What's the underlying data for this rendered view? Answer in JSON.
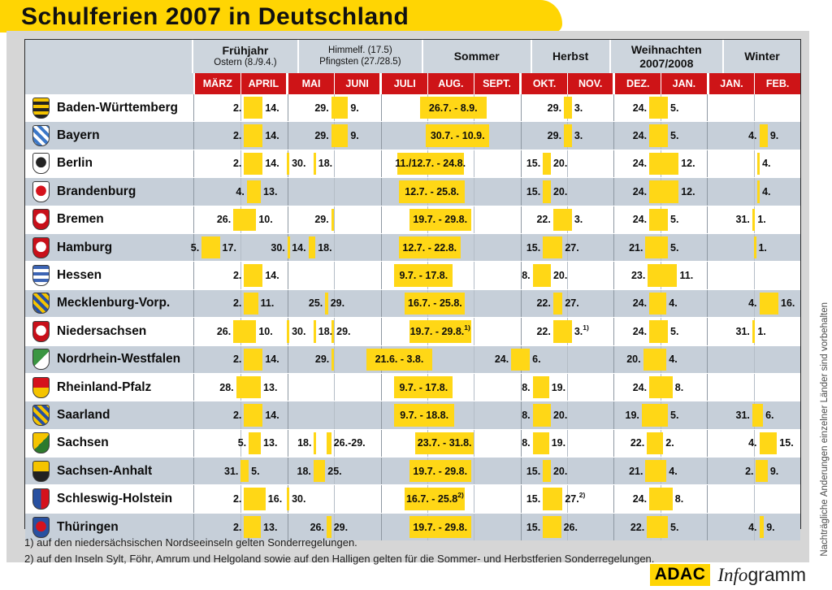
{
  "title": "Schulferien 2007 in Deutschland",
  "colors": {
    "yellow": "#ffd503",
    "bar_yellow": "#ffd716",
    "red": "#ce1417",
    "header_bg": "#cdd5dd",
    "row_alt": "#c6cfd9",
    "panel_gray": "#d6d6d6"
  },
  "header": {
    "groups": [
      {
        "label": "Frühjahr",
        "sub": "Ostern (8./9.4.)",
        "cols": 2,
        "plain": false,
        "sub_strong": false
      },
      {
        "label": "Himmelf. (17.5)",
        "sub": "Pfingsten (27./28.5)",
        "cols": 2,
        "plain": true,
        "sub_strong": false
      },
      {
        "label": "Sommer",
        "sub": "",
        "cols": 3,
        "plain": false,
        "sub_strong": false
      },
      {
        "label": "Herbst",
        "sub": "",
        "cols": 2,
        "plain": false,
        "sub_strong": false
      },
      {
        "label": "Weihnachten",
        "sub": "2007/2008",
        "cols": 2,
        "plain": false,
        "sub_strong": true
      },
      {
        "label": "Winter",
        "sub": "",
        "cols": 2,
        "plain": false,
        "sub_strong": false
      }
    ],
    "months": [
      "MÄRZ",
      "APRIL",
      "MAI",
      "JUNI",
      "JULI",
      "AUG.",
      "SEPT.",
      "OKT.",
      "NOV.",
      "DEZ.",
      "JAN.",
      "JAN.",
      "FEB."
    ],
    "group_start_indices": [
      2,
      4,
      7,
      9,
      11
    ]
  },
  "rows": [
    {
      "name": "Baden-Württemberg",
      "shield": {
        "pattern": "stripes",
        "c1": "#f5c400",
        "c2": "#222222"
      },
      "spans": [
        {
          "s": 1.07,
          "e": 1.47,
          "ll": "2.",
          "lr": "14."
        },
        {
          "s": 2.94,
          "e": 3.3,
          "ll": "29.",
          "lr": "9."
        },
        {
          "s": 4.84,
          "e": 6.27,
          "li": "26.7. - 8.9."
        },
        {
          "s": 7.93,
          "e": 8.1,
          "ll": "29.",
          "lr": "3."
        },
        {
          "s": 9.76,
          "e": 10.16,
          "ll": "24.",
          "lr": "5."
        }
      ]
    },
    {
      "name": "Bayern",
      "shield": {
        "pattern": "checker",
        "c1": "#ffffff",
        "c2": "#3c78c8"
      },
      "spans": [
        {
          "s": 1.07,
          "e": 1.47,
          "ll": "2.",
          "lr": "14."
        },
        {
          "s": 2.94,
          "e": 3.3,
          "ll": "29.",
          "lr": "9."
        },
        {
          "s": 4.97,
          "e": 6.33,
          "li": "30.7. - 10.9."
        },
        {
          "s": 7.93,
          "e": 8.1,
          "ll": "29.",
          "lr": "3."
        },
        {
          "s": 9.76,
          "e": 10.16,
          "ll": "24.",
          "lr": "5."
        },
        {
          "s": 12.12,
          "e": 12.3,
          "ll": "4.",
          "lr": "9."
        }
      ]
    },
    {
      "name": "Berlin",
      "shield": {
        "pattern": "emblem",
        "c1": "#ffffff",
        "c2": "#222222"
      },
      "spans": [
        {
          "s": 1.07,
          "e": 1.47,
          "ll": "2.",
          "lr": "14."
        },
        {
          "s": 1.99,
          "e": 2.04,
          "lr": "30."
        },
        {
          "s": 2.56,
          "e": 2.61,
          "lr": "18."
        },
        {
          "s": 4.35,
          "e": 5.78,
          "li": "11./12.7. - 24.8."
        },
        {
          "s": 7.48,
          "e": 7.65,
          "ll": "15.",
          "lr": "20."
        },
        {
          "s": 9.76,
          "e": 10.39,
          "ll": "24.",
          "lr": "12."
        },
        {
          "s": 12.08,
          "e": 12.13,
          "lr": "4."
        }
      ]
    },
    {
      "name": "Brandenburg",
      "shield": {
        "pattern": "emblem",
        "c1": "#ffffff",
        "c2": "#d5121c"
      },
      "spans": [
        {
          "s": 1.13,
          "e": 1.43,
          "ll": "4.",
          "lr": "13."
        },
        {
          "s": 4.39,
          "e": 5.81,
          "li": "12.7. - 25.8."
        },
        {
          "s": 7.48,
          "e": 7.65,
          "ll": "15.",
          "lr": "20."
        },
        {
          "s": 9.76,
          "e": 10.39,
          "ll": "24.",
          "lr": "12."
        },
        {
          "s": 12.08,
          "e": 12.13,
          "lr": "4."
        }
      ]
    },
    {
      "name": "Bremen",
      "shield": {
        "pattern": "emblem",
        "c1": "#c8101a",
        "c2": "#ffffff"
      },
      "spans": [
        {
          "s": 0.84,
          "e": 1.33,
          "ll": "26.",
          "lr": "10."
        },
        {
          "s": 2.94,
          "e": 2.99,
          "ll": "29."
        },
        {
          "s": 4.61,
          "e": 5.94,
          "li": "19.7. - 29.8."
        },
        {
          "s": 7.7,
          "e": 8.1,
          "ll": "22.",
          "lr": "3."
        },
        {
          "s": 9.76,
          "e": 10.16,
          "ll": "24.",
          "lr": "5."
        },
        {
          "s": 11.97,
          "e": 12.03,
          "ll": "31.",
          "lr": "1."
        }
      ]
    },
    {
      "name": "Hamburg",
      "shield": {
        "pattern": "emblem",
        "c1": "#c8101a",
        "c2": "#ffffff"
      },
      "spans": [
        {
          "s": 0.16,
          "e": 0.55,
          "ll": "5.",
          "lr": "17."
        },
        {
          "s": 2.0,
          "e": 2.05,
          "ll": "30."
        },
        {
          "s": 2.45,
          "e": 2.6,
          "ll": "14.",
          "lr": "18."
        },
        {
          "s": 4.39,
          "e": 5.71,
          "li": "12.7. - 22.8."
        },
        {
          "s": 7.48,
          "e": 7.9,
          "ll": "15.",
          "lr": "27."
        },
        {
          "s": 9.68,
          "e": 10.16,
          "ll": "21.",
          "lr": "5."
        },
        {
          "s": 12.0,
          "e": 12.05,
          "lr": "1."
        }
      ]
    },
    {
      "name": "Hessen",
      "shield": {
        "pattern": "stripes",
        "c1": "#3c64b4",
        "c2": "#ffffff"
      },
      "spans": [
        {
          "s": 1.07,
          "e": 1.47,
          "ll": "2.",
          "lr": "14."
        },
        {
          "s": 4.29,
          "e": 5.55,
          "li": "9.7. - 17.8."
        },
        {
          "s": 7.26,
          "e": 7.65,
          "ll": "8.",
          "lr": "20."
        },
        {
          "s": 9.73,
          "e": 10.36,
          "ll": "23.",
          "lr": "11."
        }
      ]
    },
    {
      "name": "Mecklenburg-Vorp.",
      "shield": {
        "pattern": "checker",
        "c1": "#f5c400",
        "c2": "#2850a0"
      },
      "spans": [
        {
          "s": 1.07,
          "e": 1.37,
          "ll": "2.",
          "lr": "11."
        },
        {
          "s": 2.81,
          "e": 2.87,
          "ll": "25.",
          "lr": "29."
        },
        {
          "s": 4.52,
          "e": 5.81,
          "li": "16.7. - 25.8."
        },
        {
          "s": 7.7,
          "e": 7.9,
          "ll": "22.",
          "lr": "27."
        },
        {
          "s": 9.76,
          "e": 10.13,
          "ll": "24.",
          "lr": "4."
        },
        {
          "s": 12.12,
          "e": 12.53,
          "ll": "4.",
          "lr": "16."
        }
      ]
    },
    {
      "name": "Niedersachsen",
      "shield": {
        "pattern": "emblem",
        "c1": "#c8101a",
        "c2": "#ffffff"
      },
      "spans": [
        {
          "s": 0.84,
          "e": 1.33,
          "ll": "26.",
          "lr": "10."
        },
        {
          "s": 1.99,
          "e": 2.04,
          "lr": "30."
        },
        {
          "s": 2.56,
          "e": 2.61,
          "lr": "18."
        },
        {
          "s": 2.95,
          "e": 3.0,
          "lr": "29."
        },
        {
          "s": 4.61,
          "e": 5.94,
          "li": "19.7. - 29.8.",
          "lisup": "1)"
        },
        {
          "s": 7.7,
          "e": 8.1,
          "ll": "22.",
          "lr": "3.",
          "lrsup": "1)"
        },
        {
          "s": 9.76,
          "e": 10.16,
          "ll": "24.",
          "lr": "5."
        },
        {
          "s": 11.97,
          "e": 12.03,
          "ll": "31.",
          "lr": "1."
        }
      ]
    },
    {
      "name": "Nordrhein-Westfalen",
      "shield": {
        "pattern": "diag",
        "c1": "#3a9642",
        "c2": "#ffffff"
      },
      "spans": [
        {
          "s": 1.07,
          "e": 1.47,
          "ll": "2.",
          "lr": "14."
        },
        {
          "s": 2.95,
          "e": 3.0,
          "ll": "29."
        },
        {
          "s": 3.7,
          "e": 5.1,
          "li": "21.6. - 3.8."
        },
        {
          "s": 6.8,
          "e": 7.2,
          "ll": "24.",
          "lr": "6."
        },
        {
          "s": 9.63,
          "e": 10.13,
          "ll": "20.",
          "lr": "4."
        }
      ]
    },
    {
      "name": "Rheinland-Pfalz",
      "shield": {
        "pattern": "split-h",
        "c1": "#d5121c",
        "c2": "#f5c400"
      },
      "spans": [
        {
          "s": 0.9,
          "e": 1.43,
          "ll": "28.",
          "lr": "13."
        },
        {
          "s": 4.29,
          "e": 5.55,
          "li": "9.7. - 17.8."
        },
        {
          "s": 7.26,
          "e": 7.61,
          "ll": "8.",
          "lr": "19."
        },
        {
          "s": 9.76,
          "e": 10.26,
          "ll": "24.",
          "lr": "8."
        }
      ]
    },
    {
      "name": "Saarland",
      "shield": {
        "pattern": "checker",
        "c1": "#2850a0",
        "c2": "#f5c400"
      },
      "spans": [
        {
          "s": 1.07,
          "e": 1.47,
          "ll": "2.",
          "lr": "14."
        },
        {
          "s": 4.29,
          "e": 5.58,
          "li": "9.7. - 18.8."
        },
        {
          "s": 7.26,
          "e": 7.65,
          "ll": "8.",
          "lr": "20."
        },
        {
          "s": 9.6,
          "e": 10.16,
          "ll": "19.",
          "lr": "5."
        },
        {
          "s": 11.97,
          "e": 12.2,
          "ll": "31.",
          "lr": "6."
        }
      ]
    },
    {
      "name": "Sachsen",
      "shield": {
        "pattern": "diag",
        "c1": "#f5c400",
        "c2": "#2d7a2d"
      },
      "spans": [
        {
          "s": 1.17,
          "e": 1.43,
          "ll": "5.",
          "lr": "13."
        },
        {
          "s": 2.57,
          "e": 2.62,
          "ll": "18."
        },
        {
          "s": 2.84,
          "e": 2.94,
          "lr": "26.-29."
        },
        {
          "s": 4.74,
          "e": 6.0,
          "li": "23.7. - 31.8."
        },
        {
          "s": 7.26,
          "e": 7.61,
          "ll": "8.",
          "lr": "19."
        },
        {
          "s": 9.71,
          "e": 10.06,
          "ll": "22.",
          "lr": "2."
        },
        {
          "s": 12.12,
          "e": 12.5,
          "ll": "4.",
          "lr": "15."
        }
      ]
    },
    {
      "name": "Sachsen-Anhalt",
      "shield": {
        "pattern": "split-h",
        "c1": "#f5c400",
        "c2": "#222222"
      },
      "spans": [
        {
          "s": 1.0,
          "e": 1.17,
          "ll": "31.",
          "lr": "5."
        },
        {
          "s": 2.56,
          "e": 2.81,
          "ll": "18.",
          "lr": "25."
        },
        {
          "s": 4.61,
          "e": 5.94,
          "li": "19.7. - 29.8."
        },
        {
          "s": 7.48,
          "e": 7.65,
          "ll": "15.",
          "lr": "20."
        },
        {
          "s": 9.68,
          "e": 10.13,
          "ll": "21.",
          "lr": "4."
        },
        {
          "s": 12.05,
          "e": 12.3,
          "ll": "2.",
          "lr": "9."
        }
      ]
    },
    {
      "name": "Schleswig-Holstein",
      "shield": {
        "pattern": "split-v",
        "c1": "#2850a0",
        "c2": "#d5121c"
      },
      "spans": [
        {
          "s": 1.07,
          "e": 1.53,
          "ll": "2.",
          "lr": "16."
        },
        {
          "s": 1.99,
          "e": 2.04,
          "lr": "30."
        },
        {
          "s": 4.52,
          "e": 5.81,
          "li": "16.7. - 25.8",
          "lisup": "2)"
        },
        {
          "s": 7.48,
          "e": 7.9,
          "ll": "15.",
          "lr": "27.",
          "lrsup": "2)"
        },
        {
          "s": 9.76,
          "e": 10.26,
          "ll": "24.",
          "lr": "8."
        }
      ]
    },
    {
      "name": "Thüringen",
      "shield": {
        "pattern": "emblem",
        "c1": "#2850a0",
        "c2": "#d5121c"
      },
      "spans": [
        {
          "s": 1.07,
          "e": 1.43,
          "ll": "2.",
          "lr": "13."
        },
        {
          "s": 2.84,
          "e": 2.94,
          "ll": "26.",
          "lr": "29."
        },
        {
          "s": 4.61,
          "e": 5.94,
          "li": "19.7. - 29.8."
        },
        {
          "s": 7.48,
          "e": 7.87,
          "ll": "15.",
          "lr": "26."
        },
        {
          "s": 9.71,
          "e": 10.16,
          "ll": "22.",
          "lr": "5."
        },
        {
          "s": 12.12,
          "e": 12.22,
          "ll": "4.",
          "lr": "9."
        }
      ]
    }
  ],
  "footnotes": [
    "1) auf den niedersächsischen Nordseeinseln gelten Sonderregelungen.",
    "2) auf den Inseln Sylt, Föhr, Amrum und Helgoland sowie auf den Halligen gelten für die Sommer- und Herbstferien Sonderregelungen."
  ],
  "side_note": "Nachträgliche Änderungen einzelner Länder sind vorbehalten",
  "footer": {
    "logo": "ADAC",
    "brand_italic": "Info",
    "brand_rest": "gramm"
  },
  "chart_data": {
    "type": "gantt",
    "title": "Schulferien 2007 in Deutschland",
    "x_axis_months": [
      "MÄRZ",
      "APRIL",
      "MAI",
      "JUNI",
      "JULI",
      "AUG.",
      "SEPT.",
      "OKT.",
      "NOV.",
      "DEZ.",
      "JAN.",
      "JAN.",
      "FEB."
    ],
    "season_groups": [
      "Frühjahr (Ostern 8./9.4.)",
      "Himmelf. (17.5) / Pfingsten (27./28.5)",
      "Sommer",
      "Herbst",
      "Weihnachten 2007/2008",
      "Winter"
    ],
    "rows": [
      {
        "state": "Baden-Württemberg",
        "fruehjahr": "2.-14.4.",
        "pfingsten": "29.5.-9.6.",
        "sommer": "26.7.-8.9.",
        "herbst": "29.10.-3.11.",
        "weihnachten": "24.12.-5.1.",
        "winter": ""
      },
      {
        "state": "Bayern",
        "fruehjahr": "2.-14.4.",
        "pfingsten": "29.5.-9.6.",
        "sommer": "30.7.-10.9.",
        "herbst": "29.10.-3.11.",
        "weihnachten": "24.12.-5.1.",
        "winter": "4.-9.2."
      },
      {
        "state": "Berlin",
        "fruehjahr": "2.-14.4.",
        "pfingsten": "30.4., 18.5.",
        "sommer": "11./12.7.-24.8.",
        "herbst": "15.-20.10.",
        "weihnachten": "24.12.-12.1.",
        "winter": "4.2."
      },
      {
        "state": "Brandenburg",
        "fruehjahr": "4.-13.4.",
        "pfingsten": "",
        "sommer": "12.7.-25.8.",
        "herbst": "15.-20.10.",
        "weihnachten": "24.12.-12.1.",
        "winter": "4.2."
      },
      {
        "state": "Bremen",
        "fruehjahr": "26.3.-10.4.",
        "pfingsten": "29.5.",
        "sommer": "19.7.-29.8.",
        "herbst": "22.10.-3.11.",
        "weihnachten": "24.12.-5.1.",
        "winter": "31.1.-1.2."
      },
      {
        "state": "Hamburg",
        "fruehjahr": "5.-17.3.",
        "pfingsten": "30.4., 14.-18.5.",
        "sommer": "12.7.-22.8.",
        "herbst": "15.-27.10.",
        "weihnachten": "21.12.-5.1.",
        "winter": "1.2."
      },
      {
        "state": "Hessen",
        "fruehjahr": "2.-14.4.",
        "pfingsten": "",
        "sommer": "9.7.-17.8.",
        "herbst": "8.-20.10.",
        "weihnachten": "23.12.-11.1.",
        "winter": ""
      },
      {
        "state": "Mecklenburg-Vorp.",
        "fruehjahr": "2.-11.4.",
        "pfingsten": "25.-29.5.",
        "sommer": "16.7.-25.8.",
        "herbst": "22.-27.10.",
        "weihnachten": "24.12.-4.1.",
        "winter": "4.-16.2."
      },
      {
        "state": "Niedersachsen",
        "fruehjahr": "26.3.-10.4.",
        "pfingsten": "30.4., 18.5., 29.5.",
        "sommer": "19.7.-29.8. 1)",
        "herbst": "22.10.-3.11. 1)",
        "weihnachten": "24.12.-5.1.",
        "winter": "31.1.-1.2."
      },
      {
        "state": "Nordrhein-Westfalen",
        "fruehjahr": "2.-14.4.",
        "pfingsten": "29.5.",
        "sommer": "21.6.-3.8.",
        "herbst": "24.9.-6.10.",
        "weihnachten": "20.12.-4.1.",
        "winter": ""
      },
      {
        "state": "Rheinland-Pfalz",
        "fruehjahr": "28.3.-13.4.",
        "pfingsten": "",
        "sommer": "9.7.-17.8.",
        "herbst": "8.-19.10.",
        "weihnachten": "24.12.-8.1.",
        "winter": ""
      },
      {
        "state": "Saarland",
        "fruehjahr": "2.-14.4.",
        "pfingsten": "",
        "sommer": "9.7.-18.8.",
        "herbst": "8.-20.10.",
        "weihnachten": "19.12.-5.1.",
        "winter": "31.1.-6.2."
      },
      {
        "state": "Sachsen",
        "fruehjahr": "5.-13.4.",
        "pfingsten": "18.5., 26.-29.5.",
        "sommer": "23.7.-31.8.",
        "herbst": "8.-19.10.",
        "weihnachten": "22.12.-2.1.",
        "winter": "4.-15.2."
      },
      {
        "state": "Sachsen-Anhalt",
        "fruehjahr": "31.3.-5.4.",
        "pfingsten": "18.-25.5.",
        "sommer": "19.7.-29.8.",
        "herbst": "15.-20.10.",
        "weihnachten": "21.12.-4.1.",
        "winter": "2.-9.2."
      },
      {
        "state": "Schleswig-Holstein",
        "fruehjahr": "2.-16.4.",
        "pfingsten": "30.4.",
        "sommer": "16.7.-25.8. 2)",
        "herbst": "15.-27.10. 2)",
        "weihnachten": "24.12.-8.1.",
        "winter": ""
      },
      {
        "state": "Thüringen",
        "fruehjahr": "2.-13.4.",
        "pfingsten": "26.-29.5.",
        "sommer": "19.7.-29.8.",
        "herbst": "15.-26.10.",
        "weihnachten": "22.12.-5.1.",
        "winter": "4.-9.2."
      }
    ]
  }
}
